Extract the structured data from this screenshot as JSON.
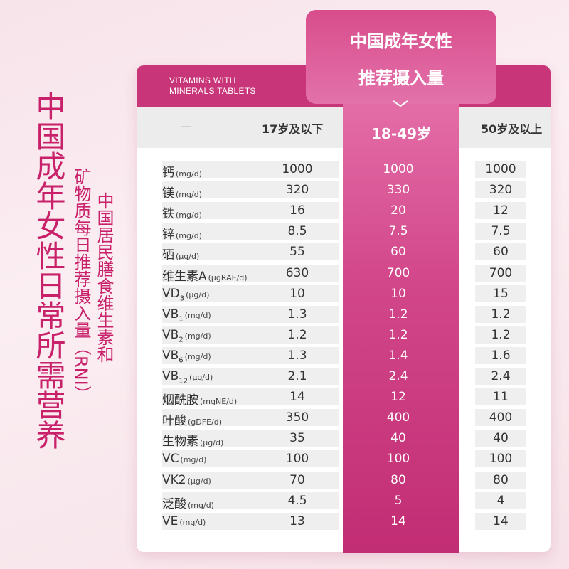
{
  "title_main": "中国成年女性日常所需营养",
  "title_sub1": "矿物质每日推荐摄入量（RNI）",
  "title_sub2": "中国居民膳食维生素和",
  "brand_line1": "VITAMINS WITH",
  "brand_line2": "MINERALS TABLETS",
  "highlight_line1": "中国成年女性",
  "highlight_line2": "推荐摄入量",
  "columns": {
    "blank": "—",
    "young": "17岁及以下",
    "mid": "18-49岁",
    "old": "50岁及以上"
  },
  "colors": {
    "accent": "#c83679",
    "title": "#c8216a",
    "panel": "#d2478a"
  },
  "rows": [
    {
      "name": "钙",
      "unit": "(mg/d)",
      "a": "1000",
      "b": "1000",
      "c": "1000"
    },
    {
      "name": "镁",
      "unit": "(mg/d)",
      "a": "320",
      "b": "330",
      "c": "320"
    },
    {
      "name": "铁",
      "unit": "(mg/d)",
      "a": "16",
      "b": "20",
      "c": "12"
    },
    {
      "name": "锌",
      "unit": "(mg/d)",
      "a": "8.5",
      "b": "7.5",
      "c": "7.5"
    },
    {
      "name": "硒",
      "unit": "(μg/d)",
      "a": "55",
      "b": "60",
      "c": "60"
    },
    {
      "name": "维生素A",
      "unit": "(μgRAE/d)",
      "a": "630",
      "b": "700",
      "c": "700"
    },
    {
      "name": "VD",
      "sub": "3",
      "unit": "(μg/d)",
      "a": "10",
      "b": "10",
      "c": "15"
    },
    {
      "name": "VB",
      "sub": "1",
      "unit": "(mg/d)",
      "a": "1.3",
      "b": "1.2",
      "c": "1.2"
    },
    {
      "name": "VB",
      "sub": "2",
      "unit": "(mg/d)",
      "a": "1.2",
      "b": "1.2",
      "c": "1.2"
    },
    {
      "name": "VB",
      "sub": "6",
      "unit": "(mg/d)",
      "a": "1.3",
      "b": "1.4",
      "c": "1.6"
    },
    {
      "name": "VB",
      "sub": "12",
      "unit": "(μg/d)",
      "a": "2.1",
      "b": "2.4",
      "c": "2.4"
    },
    {
      "name": "烟酰胺",
      "unit": "(mgNE/d)",
      "a": "14",
      "b": "12",
      "c": "11"
    },
    {
      "name": "叶酸",
      "unit": "(gDFE/d)",
      "a": "350",
      "b": "400",
      "c": "400"
    },
    {
      "name": "生物素",
      "unit": "(μg/d)",
      "a": "35",
      "b": "40",
      "c": "40"
    },
    {
      "name": "VC",
      "unit": "(mg/d)",
      "a": "100",
      "b": "100",
      "c": "100"
    },
    {
      "name": "VK2",
      "unit": "(μg/d)",
      "a": "70",
      "b": "80",
      "c": "80"
    },
    {
      "name": "泛酸",
      "unit": "(mg/d)",
      "a": "4.5",
      "b": "5",
      "c": "4"
    },
    {
      "name": "VE",
      "unit": "(mg/d)",
      "a": "13",
      "b": "14",
      "c": "14"
    }
  ]
}
